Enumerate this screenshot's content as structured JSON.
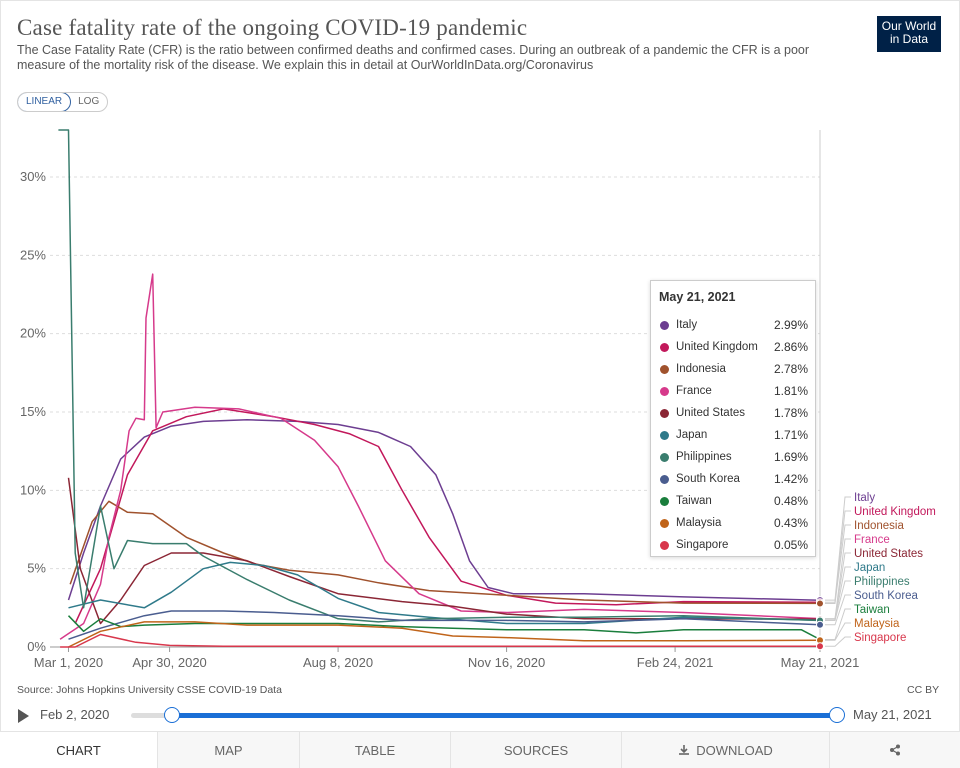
{
  "header": {
    "title": "Case fatality rate of the ongoing COVID-19 pandemic",
    "subtitle": "The Case Fatality Rate (CFR) is the ratio between confirmed deaths and confirmed cases. During an outbreak of a pandemic the CFR is a poor measure of the mortality risk of the disease. We explain this in detail at OurWorldInData.org/Coronavirus",
    "logo_line1": "Our World",
    "logo_line2": "in Data"
  },
  "scale_toggle": {
    "linear": "LINEAR",
    "log": "LOG",
    "selected": "linear"
  },
  "chart_data": {
    "type": "line",
    "x_ticks": [
      "Mar 1, 2020",
      "Apr 30, 2020",
      "Aug 8, 2020",
      "Nov 16, 2020",
      "Feb 24, 2021",
      "May 21, 2021"
    ],
    "y_ticks": [
      "0%",
      "5%",
      "10%",
      "15%",
      "20%",
      "25%",
      "30%"
    ],
    "ylim": [
      0,
      33
    ],
    "xlim": [
      "2020-02-22",
      "2021-05-21"
    ],
    "grid": true,
    "y_unit": "%",
    "series": [
      {
        "name": "Italy",
        "color": "#6d3e91",
        "points": [
          [
            "2020-03-01",
            3
          ],
          [
            "2020-03-10",
            6
          ],
          [
            "2020-03-20",
            9
          ],
          [
            "2020-04-01",
            12
          ],
          [
            "2020-04-15",
            13.4
          ],
          [
            "2020-05-01",
            14.1
          ],
          [
            "2020-05-20",
            14.4
          ],
          [
            "2020-06-15",
            14.5
          ],
          [
            "2020-07-15",
            14.4
          ],
          [
            "2020-08-08",
            14.2
          ],
          [
            "2020-09-01",
            13.7
          ],
          [
            "2020-09-20",
            12.8
          ],
          [
            "2020-10-05",
            11
          ],
          [
            "2020-10-15",
            8.5
          ],
          [
            "2020-10-25",
            5.5
          ],
          [
            "2020-11-05",
            3.8
          ],
          [
            "2020-11-20",
            3.4
          ],
          [
            "2021-01-01",
            3.4
          ],
          [
            "2021-03-01",
            3.2
          ],
          [
            "2021-05-21",
            2.99
          ]
        ]
      },
      {
        "name": "United Kingdom",
        "color": "#c2185b",
        "points": [
          [
            "2020-03-05",
            1.5
          ],
          [
            "2020-03-20",
            5
          ],
          [
            "2020-04-05",
            11
          ],
          [
            "2020-04-20",
            13.8
          ],
          [
            "2020-05-10",
            14.7
          ],
          [
            "2020-06-01",
            15.2
          ],
          [
            "2020-07-01",
            14.7
          ],
          [
            "2020-07-25",
            14.2
          ],
          [
            "2020-08-15",
            13.6
          ],
          [
            "2020-09-01",
            12.8
          ],
          [
            "2020-09-15",
            10
          ],
          [
            "2020-10-01",
            7
          ],
          [
            "2020-10-20",
            4.2
          ],
          [
            "2020-11-16",
            3.3
          ],
          [
            "2020-12-15",
            2.8
          ],
          [
            "2021-01-20",
            2.7
          ],
          [
            "2021-03-01",
            2.9
          ],
          [
            "2021-05-21",
            2.86
          ]
        ]
      },
      {
        "name": "Indonesia",
        "color": "#a0522d",
        "points": [
          [
            "2020-03-02",
            4
          ],
          [
            "2020-03-15",
            8
          ],
          [
            "2020-03-25",
            9.3
          ],
          [
            "2020-04-05",
            8.6
          ],
          [
            "2020-04-20",
            8.5
          ],
          [
            "2020-05-10",
            7
          ],
          [
            "2020-06-01",
            6
          ],
          [
            "2020-06-20",
            5.3
          ],
          [
            "2020-07-10",
            4.9
          ],
          [
            "2020-08-08",
            4.6
          ],
          [
            "2020-09-01",
            4.1
          ],
          [
            "2020-10-01",
            3.6
          ],
          [
            "2020-11-16",
            3.3
          ],
          [
            "2021-01-01",
            3
          ],
          [
            "2021-03-01",
            2.8
          ],
          [
            "2021-05-21",
            2.78
          ]
        ]
      },
      {
        "name": "France",
        "color": "#d63a8b",
        "points": [
          [
            "2020-02-25",
            0.5
          ],
          [
            "2020-03-10",
            1.5
          ],
          [
            "2020-03-20",
            4
          ],
          [
            "2020-03-25",
            7
          ],
          [
            "2020-04-01",
            10
          ],
          [
            "2020-04-06",
            13.8
          ],
          [
            "2020-04-10",
            14.6
          ],
          [
            "2020-04-15",
            14.5
          ],
          [
            "2020-04-16",
            21
          ],
          [
            "2020-04-20",
            23.8
          ],
          [
            "2020-04-22",
            14
          ],
          [
            "2020-04-26",
            15
          ],
          [
            "2020-05-15",
            15.3
          ],
          [
            "2020-06-10",
            15.2
          ],
          [
            "2020-07-05",
            14.6
          ],
          [
            "2020-07-25",
            13.2
          ],
          [
            "2020-08-08",
            11.5
          ],
          [
            "2020-08-20",
            9
          ],
          [
            "2020-09-05",
            5.5
          ],
          [
            "2020-09-25",
            3.4
          ],
          [
            "2020-10-20",
            2.3
          ],
          [
            "2020-11-16",
            2.2
          ],
          [
            "2021-01-01",
            2.4
          ],
          [
            "2021-03-01",
            2.2
          ],
          [
            "2021-05-21",
            1.81
          ]
        ]
      },
      {
        "name": "United States",
        "color": "#8b2635",
        "points": [
          [
            "2020-03-01",
            10.8
          ],
          [
            "2020-03-08",
            5
          ],
          [
            "2020-03-20",
            1.5
          ],
          [
            "2020-04-01",
            3
          ],
          [
            "2020-04-15",
            5.2
          ],
          [
            "2020-05-01",
            6
          ],
          [
            "2020-05-20",
            6
          ],
          [
            "2020-06-15",
            5.5
          ],
          [
            "2020-07-10",
            4.5
          ],
          [
            "2020-08-08",
            3.4
          ],
          [
            "2020-09-15",
            2.9
          ],
          [
            "2020-10-15",
            2.6
          ],
          [
            "2020-11-16",
            2.1
          ],
          [
            "2021-01-01",
            1.8
          ],
          [
            "2021-03-01",
            1.8
          ],
          [
            "2021-05-21",
            1.78
          ]
        ]
      },
      {
        "name": "Japan",
        "color": "#2f7a8a",
        "points": [
          [
            "2020-03-01",
            2.5
          ],
          [
            "2020-03-20",
            3
          ],
          [
            "2020-04-15",
            2.5
          ],
          [
            "2020-05-01",
            3.5
          ],
          [
            "2020-05-20",
            5
          ],
          [
            "2020-06-05",
            5.4
          ],
          [
            "2020-06-25",
            5.2
          ],
          [
            "2020-07-15",
            4.6
          ],
          [
            "2020-08-08",
            3.1
          ],
          [
            "2020-09-01",
            2.2
          ],
          [
            "2020-10-01",
            1.9
          ],
          [
            "2020-11-16",
            1.5
          ],
          [
            "2021-01-01",
            1.5
          ],
          [
            "2021-03-01",
            1.9
          ],
          [
            "2021-05-21",
            1.71
          ]
        ]
      },
      {
        "name": "Philippines",
        "color": "#3a7d6e",
        "points": [
          [
            "2020-02-24",
            33
          ],
          [
            "2020-03-01",
            33
          ],
          [
            "2020-03-05",
            6
          ],
          [
            "2020-03-10",
            2.5
          ],
          [
            "2020-03-20",
            9
          ],
          [
            "2020-03-28",
            5
          ],
          [
            "2020-04-05",
            6.8
          ],
          [
            "2020-04-20",
            6.6
          ],
          [
            "2020-05-10",
            6.6
          ],
          [
            "2020-05-20",
            5.8
          ],
          [
            "2020-06-15",
            4.3
          ],
          [
            "2020-07-10",
            3
          ],
          [
            "2020-08-08",
            1.8
          ],
          [
            "2020-09-01",
            1.6
          ],
          [
            "2020-10-01",
            1.8
          ],
          [
            "2020-11-16",
            1.9
          ],
          [
            "2021-01-01",
            1.9
          ],
          [
            "2021-03-01",
            2
          ],
          [
            "2021-05-21",
            1.69
          ]
        ]
      },
      {
        "name": "South Korea",
        "color": "#4a5d8f",
        "points": [
          [
            "2020-03-01",
            0.5
          ],
          [
            "2020-03-20",
            1.2
          ],
          [
            "2020-04-15",
            2
          ],
          [
            "2020-05-01",
            2.3
          ],
          [
            "2020-06-01",
            2.3
          ],
          [
            "2020-07-01",
            2.2
          ],
          [
            "2020-08-08",
            2
          ],
          [
            "2020-09-15",
            1.7
          ],
          [
            "2020-10-15",
            1.7
          ],
          [
            "2020-11-16",
            1.7
          ],
          [
            "2021-01-01",
            1.6
          ],
          [
            "2021-03-01",
            1.8
          ],
          [
            "2021-05-21",
            1.42
          ]
        ]
      },
      {
        "name": "Taiwan",
        "color": "#1a7e3c",
        "points": [
          [
            "2020-03-01",
            2
          ],
          [
            "2020-03-10",
            1
          ],
          [
            "2020-03-20",
            1.8
          ],
          [
            "2020-04-01",
            1.3
          ],
          [
            "2020-04-15",
            1.4
          ],
          [
            "2020-05-15",
            1.5
          ],
          [
            "2020-07-01",
            1.5
          ],
          [
            "2020-08-08",
            1.5
          ],
          [
            "2020-09-15",
            1.3
          ],
          [
            "2020-10-15",
            1.2
          ],
          [
            "2020-11-16",
            1.1
          ],
          [
            "2021-01-01",
            1.1
          ],
          [
            "2021-02-01",
            0.9
          ],
          [
            "2021-03-01",
            1.1
          ],
          [
            "2021-05-10",
            1.1
          ],
          [
            "2021-05-21",
            0.48
          ]
        ]
      },
      {
        "name": "Malaysia",
        "color": "#c0641a",
        "points": [
          [
            "2020-03-01",
            0
          ],
          [
            "2020-03-20",
            1
          ],
          [
            "2020-04-15",
            1.6
          ],
          [
            "2020-05-15",
            1.6
          ],
          [
            "2020-06-15",
            1.4
          ],
          [
            "2020-08-08",
            1.4
          ],
          [
            "2020-09-15",
            1.2
          ],
          [
            "2020-10-15",
            0.7
          ],
          [
            "2020-11-16",
            0.6
          ],
          [
            "2021-01-01",
            0.4
          ],
          [
            "2021-03-01",
            0.4
          ],
          [
            "2021-05-21",
            0.43
          ]
        ]
      },
      {
        "name": "Singapore",
        "color": "#d8374c",
        "points": [
          [
            "2020-02-25",
            0
          ],
          [
            "2020-03-05",
            0
          ],
          [
            "2020-03-20",
            0.8
          ],
          [
            "2020-04-10",
            0.3
          ],
          [
            "2020-04-30",
            0.1
          ],
          [
            "2020-06-01",
            0.05
          ],
          [
            "2020-08-08",
            0.05
          ],
          [
            "2020-11-16",
            0.05
          ],
          [
            "2021-05-21",
            0.05
          ]
        ]
      }
    ]
  },
  "tooltip": {
    "date": "May 21, 2021",
    "rows": [
      {
        "name": "Italy",
        "value": "2.99%",
        "color": "#6d3e91"
      },
      {
        "name": "United Kingdom",
        "value": "2.86%",
        "color": "#c2185b"
      },
      {
        "name": "Indonesia",
        "value": "2.78%",
        "color": "#a0522d"
      },
      {
        "name": "France",
        "value": "1.81%",
        "color": "#d63a8b"
      },
      {
        "name": "United States",
        "value": "1.78%",
        "color": "#8b2635"
      },
      {
        "name": "Japan",
        "value": "1.71%",
        "color": "#2f7a8a"
      },
      {
        "name": "Philippines",
        "value": "1.69%",
        "color": "#3a7d6e"
      },
      {
        "name": "South Korea",
        "value": "1.42%",
        "color": "#4a5d8f"
      },
      {
        "name": "Taiwan",
        "value": "0.48%",
        "color": "#1a7e3c"
      },
      {
        "name": "Malaysia",
        "value": "0.43%",
        "color": "#c0641a"
      },
      {
        "name": "Singapore",
        "value": "0.05%",
        "color": "#d8374c"
      }
    ]
  },
  "footer": {
    "source": "Source: Johns Hopkins University CSSE COVID-19 Data",
    "license": "CC BY"
  },
  "timeline": {
    "start": "Feb 2, 2020",
    "end": "May 21, 2021"
  },
  "tabs": {
    "chart": "CHART",
    "map": "MAP",
    "table": "TABLE",
    "sources": "SOURCES",
    "download": "DOWNLOAD"
  },
  "icons": [
    "play-icon",
    "download-icon",
    "share-icon"
  ]
}
